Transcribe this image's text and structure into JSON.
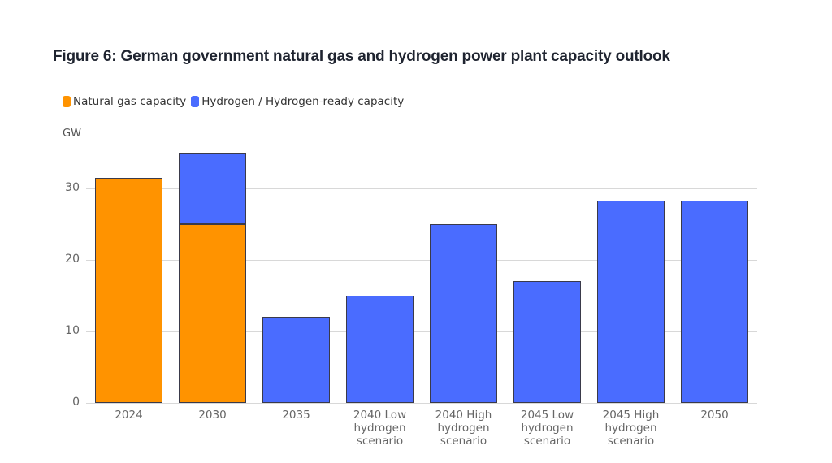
{
  "header": {
    "title": "Figure 6: German government natural gas and hydrogen power plant capacity outlook"
  },
  "legend": [
    {
      "label": "Natural gas capacity",
      "color": "#ff9300"
    },
    {
      "label": "Hydrogen / Hydrogen-ready capacity",
      "color": "#4a6cff"
    }
  ],
  "axis": {
    "unit": "GW",
    "yticks": [
      "0",
      "10",
      "20",
      "30"
    ]
  },
  "colors": {
    "natural_gas": "#ff9300",
    "hydrogen": "#4a6cff",
    "grid": "#d8d8d8"
  },
  "chart_data": {
    "type": "bar",
    "stacked": true,
    "title": "Figure 6: German government natural gas and hydrogen power plant capacity outlook",
    "xlabel": "",
    "ylabel": "GW",
    "ylim": [
      0,
      38
    ],
    "yticks": [
      0,
      10,
      20,
      30
    ],
    "grid": true,
    "legend_position": "top-left",
    "categories": [
      "2024",
      "2030",
      "2035",
      "2040 Low hydrogen scenario",
      "2040 High hydrogen scenario",
      "2045 Low hydrogen scenario",
      "2045 High hydrogen scenario",
      "2050"
    ],
    "category_lines": [
      [
        "2024"
      ],
      [
        "2030"
      ],
      [
        "2035"
      ],
      [
        "2040 Low",
        "hydrogen",
        "scenario"
      ],
      [
        "2040 High",
        "hydrogen",
        "scenario"
      ],
      [
        "2045 Low",
        "hydrogen",
        "scenario"
      ],
      [
        "2045 High",
        "hydrogen",
        "scenario"
      ],
      [
        "2050"
      ]
    ],
    "series": [
      {
        "name": "Natural gas capacity",
        "color": "#ff9300",
        "values": [
          31.5,
          25,
          0,
          0,
          0,
          0,
          0,
          0
        ]
      },
      {
        "name": "Hydrogen / Hydrogen-ready capacity",
        "color": "#4a6cff",
        "values": [
          0,
          10,
          12,
          15,
          25,
          17,
          28.3,
          28.3
        ]
      }
    ]
  }
}
